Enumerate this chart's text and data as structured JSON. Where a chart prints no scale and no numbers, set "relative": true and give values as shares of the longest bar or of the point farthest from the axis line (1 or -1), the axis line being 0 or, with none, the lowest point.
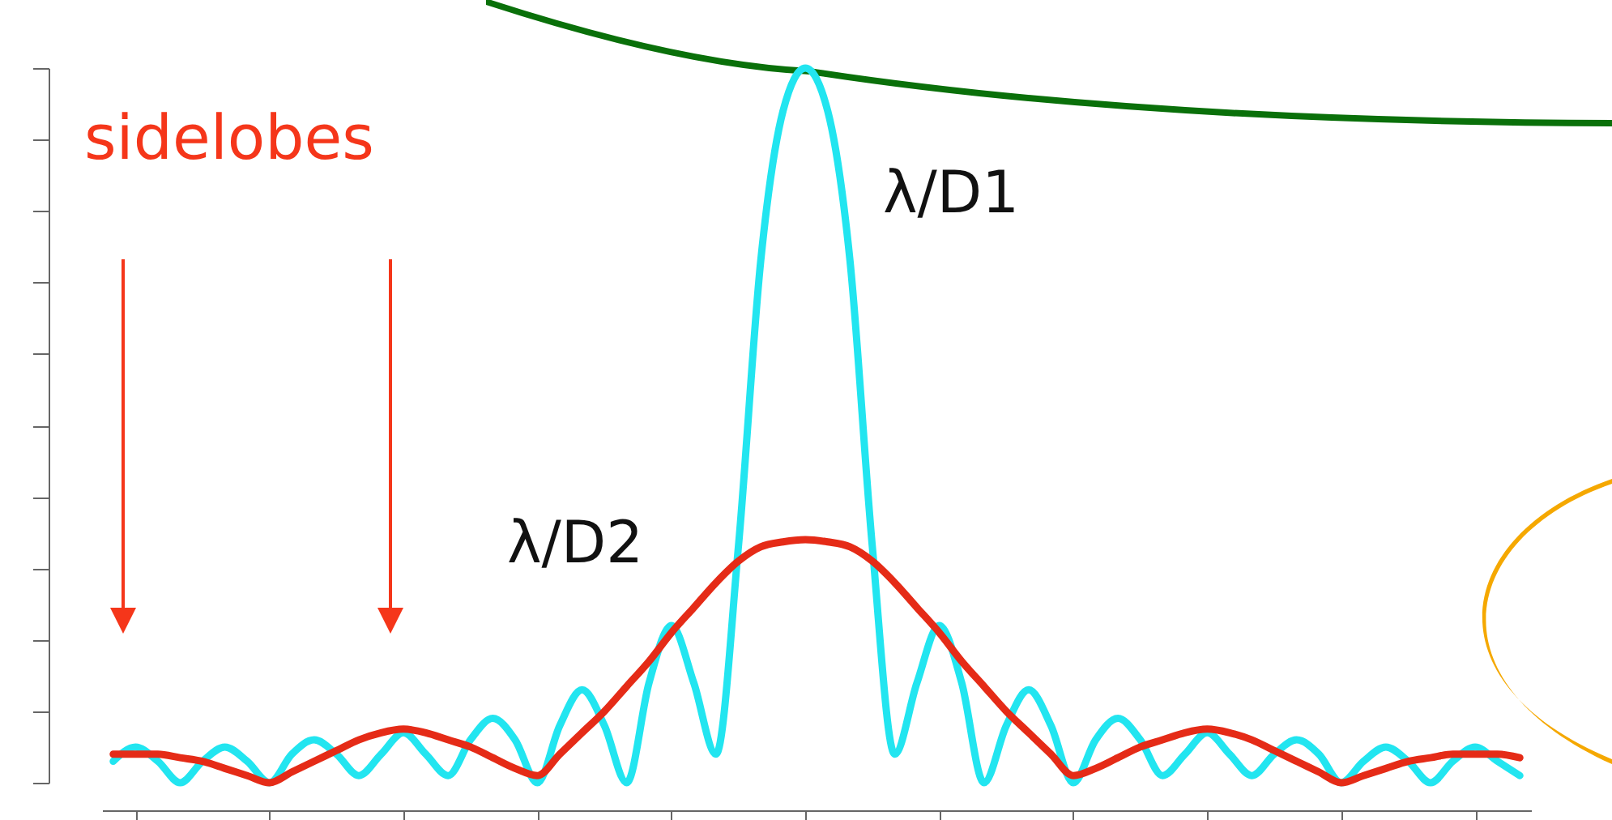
{
  "chart_data": {
    "type": "line",
    "relative": true,
    "categories": [
      null,
      null,
      null,
      null,
      null,
      null,
      null,
      null,
      null,
      null,
      null,
      null,
      null,
      null,
      null,
      null,
      null,
      null,
      null,
      null,
      null,
      null,
      null,
      null,
      null,
      null,
      null,
      null,
      null,
      null,
      null,
      null,
      null,
      null,
      null,
      null,
      null,
      null,
      null,
      null,
      null,
      null,
      null,
      null,
      null,
      null,
      null,
      null,
      null,
      null,
      null,
      null,
      null,
      null,
      null,
      null,
      null,
      null,
      null,
      null,
      null,
      null,
      null,
      null
    ],
    "series": [
      {
        "name": "λ/D1",
        "color": "#22e5f0",
        "values": [
          0.03,
          0.05,
          0.03,
          0.0,
          0.03,
          0.05,
          0.03,
          0.0,
          0.04,
          0.06,
          0.04,
          0.01,
          0.04,
          0.07,
          0.04,
          0.01,
          0.06,
          0.09,
          0.06,
          0.0,
          0.08,
          0.13,
          0.08,
          0.0,
          0.14,
          0.22,
          0.14,
          0.04,
          0.33,
          0.73,
          0.94,
          1.0,
          0.94,
          0.73,
          0.33,
          0.04,
          0.14,
          0.22,
          0.14,
          0.0,
          0.08,
          0.13,
          0.08,
          0.0,
          0.06,
          0.09,
          0.06,
          0.01,
          0.04,
          0.07,
          0.04,
          0.01,
          0.04,
          0.06,
          0.04,
          0.0,
          0.03,
          0.05,
          0.03,
          0.0,
          0.03,
          0.05,
          0.03,
          0.01
        ]
      },
      {
        "name": "λ/D2",
        "color": "#e52b17",
        "values": [
          0.04,
          0.04,
          0.04,
          0.035,
          0.03,
          0.02,
          0.01,
          0.0,
          0.015,
          0.03,
          0.045,
          0.06,
          0.07,
          0.075,
          0.07,
          0.06,
          0.05,
          0.035,
          0.02,
          0.01,
          0.04,
          0.07,
          0.1,
          0.135,
          0.17,
          0.21,
          0.245,
          0.28,
          0.31,
          0.33,
          0.337,
          0.34,
          0.337,
          0.33,
          0.31,
          0.28,
          0.245,
          0.21,
          0.17,
          0.135,
          0.1,
          0.07,
          0.04,
          0.01,
          0.02,
          0.035,
          0.05,
          0.06,
          0.07,
          0.075,
          0.07,
          0.06,
          0.045,
          0.03,
          0.015,
          0.0,
          0.01,
          0.02,
          0.03,
          0.035,
          0.04,
          0.04,
          0.04,
          0.035
        ]
      }
    ],
    "annotations": [
      "sidelobes"
    ]
  }
}
